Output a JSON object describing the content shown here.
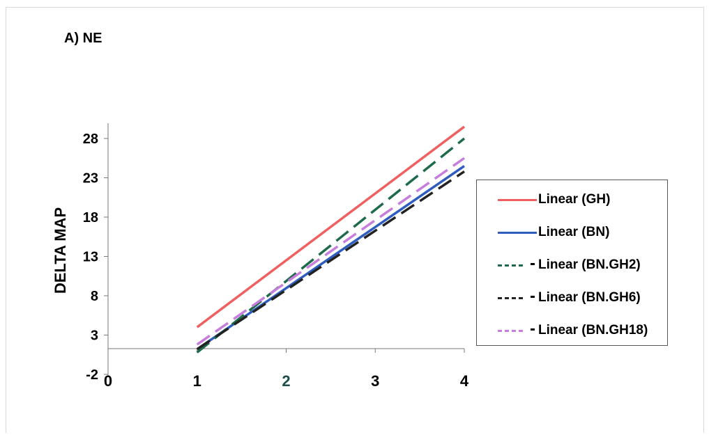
{
  "panel_label": "A) NE",
  "chart_data": {
    "type": "line",
    "title": "",
    "xlabel": "",
    "ylabel": "DELTA MAP",
    "xlim": [
      0,
      4
    ],
    "ylim": [
      -2,
      31
    ],
    "x_ticks": [
      0,
      1,
      2,
      3,
      4
    ],
    "y_ticks": [
      -2,
      3,
      8,
      13,
      18,
      23,
      28
    ],
    "grid": false,
    "legend_placement": "right",
    "series": [
      {
        "name": "Linear (GH)",
        "x": [
          1,
          4
        ],
        "values": [
          4.0,
          29.5
        ],
        "color": "#f06060",
        "dash": "solid"
      },
      {
        "name": "Linear (BN)",
        "x": [
          1,
          4
        ],
        "values": [
          1.2,
          24.5
        ],
        "color": "#2f5dbf",
        "dash": "solid"
      },
      {
        "name": "Linear (BN.GH2)",
        "x": [
          1,
          4
        ],
        "values": [
          0.8,
          28.0
        ],
        "color": "#1d6b4a",
        "dash": "dashed"
      },
      {
        "name": "Linear (BN.GH6)",
        "x": [
          1,
          4
        ],
        "values": [
          1.2,
          23.8
        ],
        "color": "#222222",
        "dash": "dashed"
      },
      {
        "name": "Linear (BN.GH18)",
        "x": [
          1,
          4
        ],
        "values": [
          1.8,
          25.5
        ],
        "color": "#c77ddb",
        "dash": "dashed"
      }
    ]
  }
}
